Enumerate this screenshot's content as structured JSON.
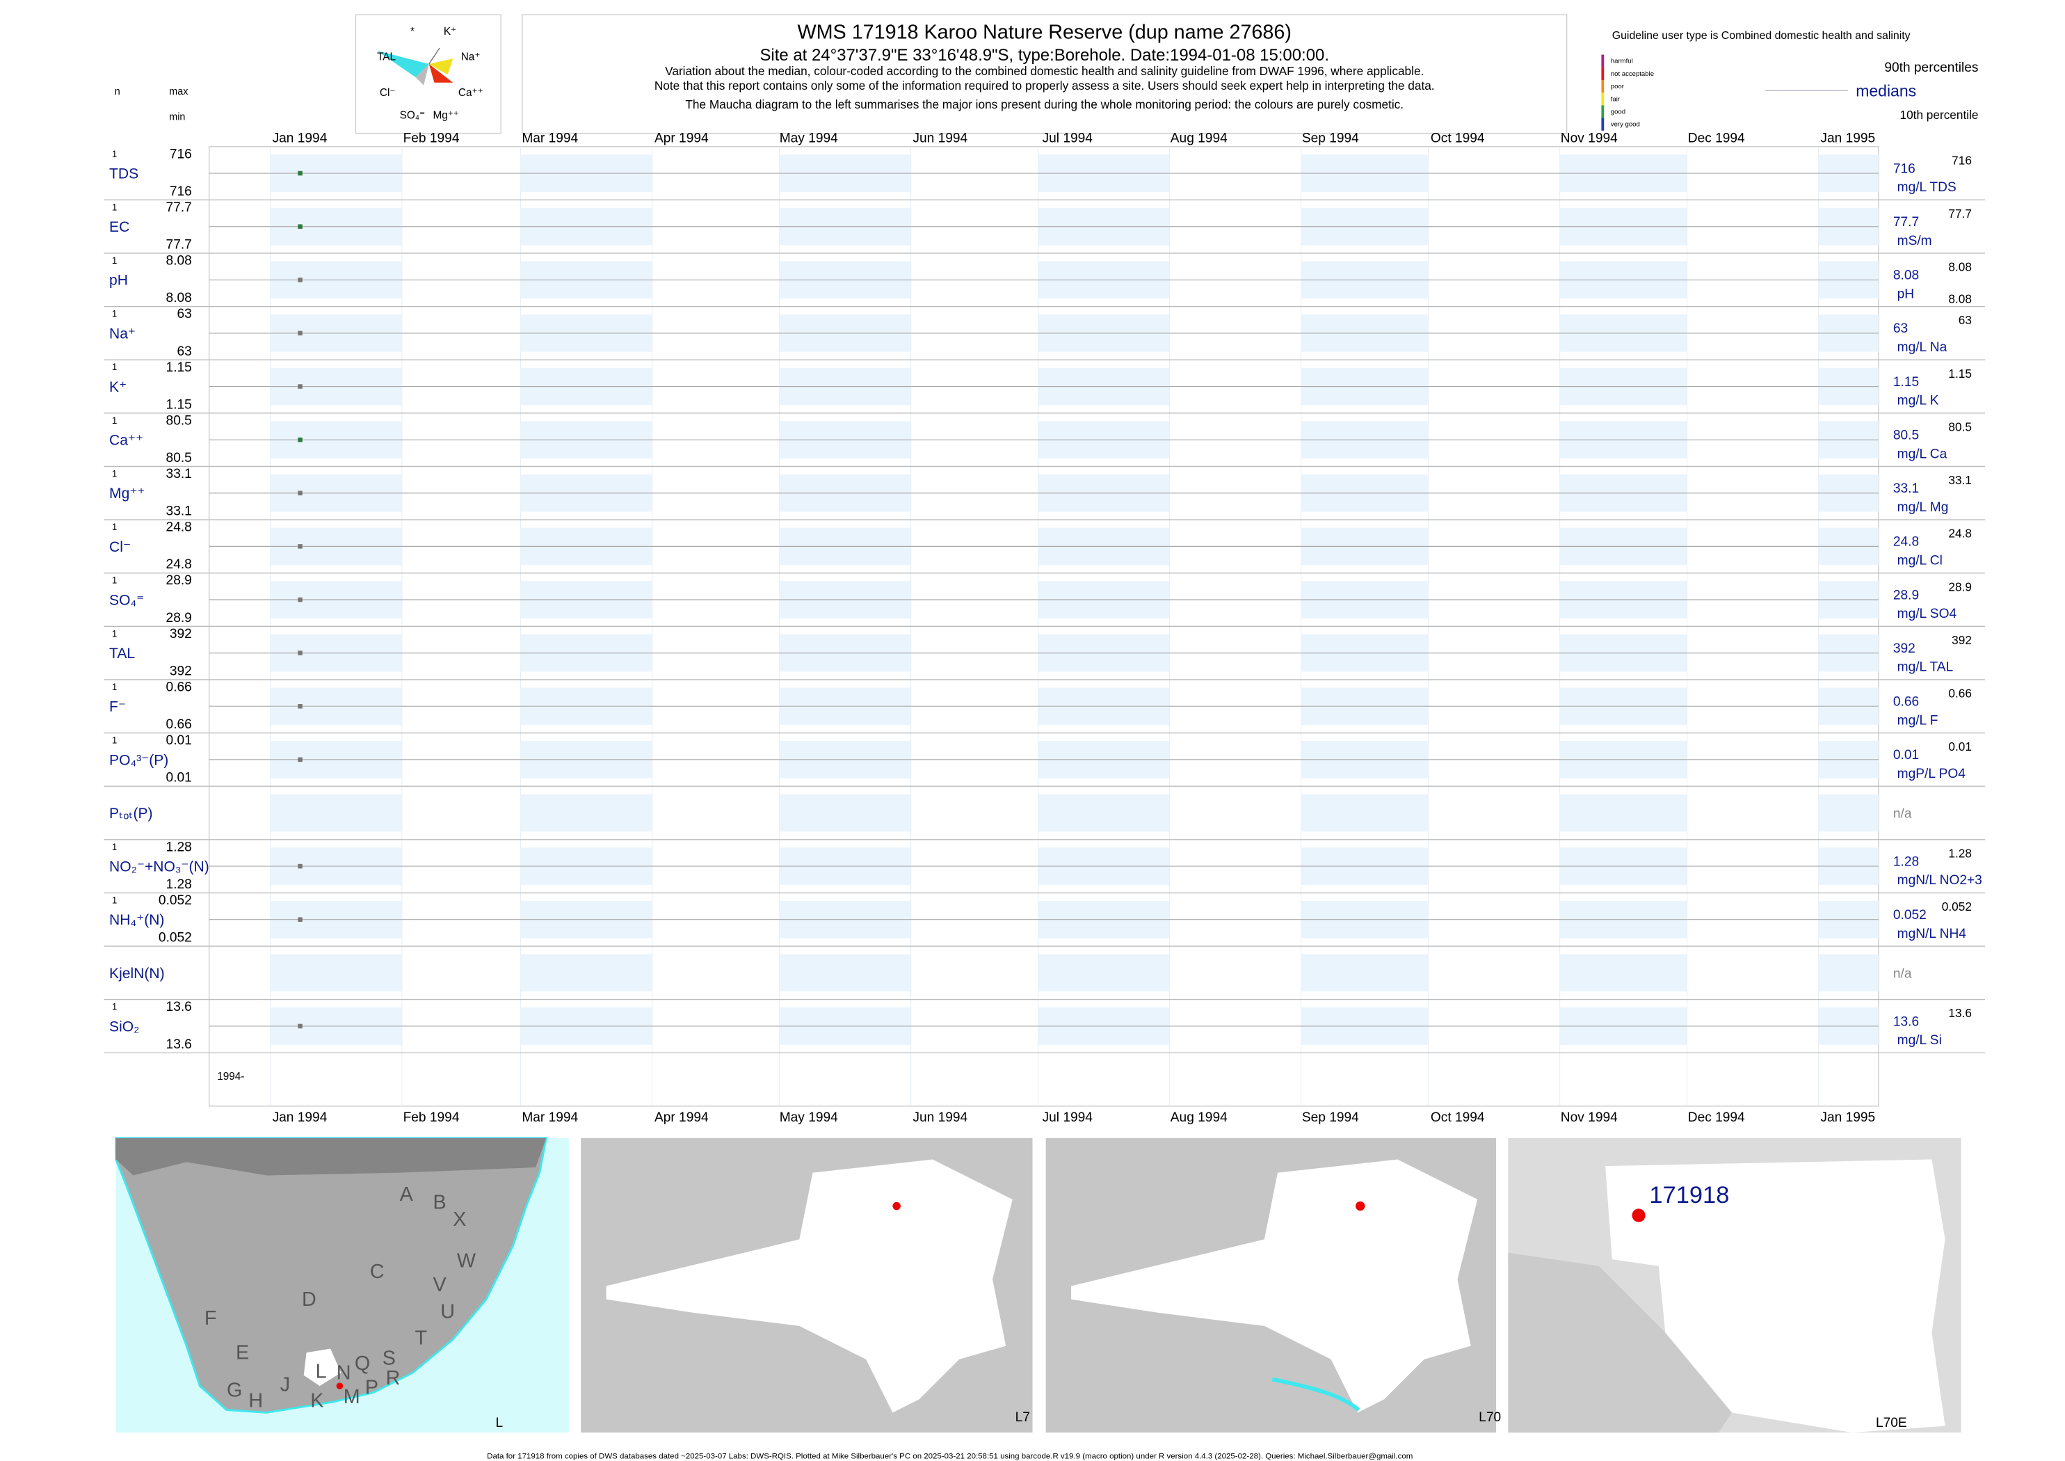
{
  "header": {
    "title": "WMS 171918  Karoo Nature Reserve (dup name 27686)",
    "subtitle": "Site at 24°37'37.9\"E 33°16'48.9\"S, type:Borehole. Date:1994-01-08 15:00:00.",
    "notes": [
      "Variation about the median,  colour-coded according to the combined domestic health and salinity guideline from DWAF 1996, where applicable.",
      "Note that this report contains only some of the information required to properly assess a site. Users should seek expert help in interpreting the data.",
      "The Maucha diagram to the left summarises the major ions present during the whole monitoring period: the colours are purely cosmetic."
    ],
    "guideline": "Guideline user type is Combined domestic health and salinity",
    "legend_levels": [
      {
        "label": "harmful",
        "color": "#b0207f"
      },
      {
        "label": "not acceptable",
        "color": "#e8141e"
      },
      {
        "label": "poor",
        "color": "#f58a1f"
      },
      {
        "label": "fair",
        "color": "#f5e61e"
      },
      {
        "label": "good",
        "color": "#2ea043"
      },
      {
        "label": "very good",
        "color": "#1f3fb4"
      }
    ],
    "p90": "90th percentiles",
    "medians": "medians",
    "p10": "10th percentile",
    "n_label": "n",
    "max_label": "max",
    "min_label": "min"
  },
  "maucha": {
    "labels": [
      "*",
      "K⁺",
      "TAL",
      "Na⁺",
      "Cl⁻",
      "Ca⁺⁺",
      "SO₄⁼",
      "Mg⁺⁺"
    ]
  },
  "chart_data": {
    "type": "strip",
    "x": [
      "Jan 1994",
      "Feb 1994",
      "Mar 1994",
      "Apr 1994",
      "May 1994",
      "Jun 1994",
      "Jul 1994",
      "Aug 1994",
      "Sep 1994",
      "Oct 1994",
      "Nov 1994",
      "Dec 1994",
      "Jan 1995"
    ],
    "sample_date": "1994-01-08",
    "start_label": "1994-",
    "rows": [
      {
        "label": "TDS",
        "n": 1,
        "max": 716,
        "min": 716,
        "median": 716,
        "unit": "mg/L TDS",
        "p90": 716,
        "color": "#2e7d3e"
      },
      {
        "label": "EC",
        "n": 1,
        "max": 77.7,
        "min": 77.7,
        "median": 77.7,
        "unit": "mS/m",
        "p90": 77.7,
        "color": "#2e7d3e"
      },
      {
        "label": "pH",
        "n": 1,
        "max": 8.08,
        "min": 8.08,
        "median": 8.08,
        "unit": "pH",
        "p90": 8.08,
        "p10": 8.08,
        "color": "#777777"
      },
      {
        "label": "Na⁺",
        "n": 1,
        "max": 63,
        "min": 63,
        "median": 63,
        "unit": "mg/L Na",
        "p90": 63,
        "color": "#777777"
      },
      {
        "label": "K⁺",
        "n": 1,
        "max": 1.15,
        "min": 1.15,
        "median": 1.15,
        "unit": "mg/L K",
        "p90": 1.15,
        "color": "#777777"
      },
      {
        "label": "Ca⁺⁺",
        "n": 1,
        "max": 80.5,
        "min": 80.5,
        "median": 80.5,
        "unit": "mg/L Ca",
        "p90": 80.5,
        "color": "#2e7d3e"
      },
      {
        "label": "Mg⁺⁺",
        "n": 1,
        "max": 33.1,
        "min": 33.1,
        "median": 33.1,
        "unit": "mg/L Mg",
        "p90": 33.1,
        "color": "#777777"
      },
      {
        "label": "Cl⁻",
        "n": 1,
        "max": 24.8,
        "min": 24.8,
        "median": 24.8,
        "unit": "mg/L Cl",
        "p90": 24.8,
        "color": "#777777"
      },
      {
        "label": "SO₄⁼",
        "n": 1,
        "max": 28.9,
        "min": 28.9,
        "median": 28.9,
        "unit": "mg/L SO4",
        "p90": 28.9,
        "color": "#777777"
      },
      {
        "label": "TAL",
        "n": 1,
        "max": 392,
        "min": 392,
        "median": 392,
        "unit": "mg/L TAL",
        "p90": 392,
        "color": "#777777"
      },
      {
        "label": "F⁻",
        "n": 1,
        "max": 0.66,
        "min": 0.66,
        "median": 0.66,
        "unit": "mg/L F",
        "p90": 0.66,
        "color": "#777777"
      },
      {
        "label": "PO₄³⁻(P)",
        "n": 1,
        "max": 0.01,
        "min": 0.01,
        "median": 0.01,
        "unit": "mgP/L PO4",
        "p90": 0.01,
        "color": "#777777"
      },
      {
        "label": "Pₜₒₜ(P)",
        "median": "n/a"
      },
      {
        "label": "NO₂⁻+NO₃⁻(N)",
        "n": 1,
        "max": 1.28,
        "min": 1.28,
        "median": 1.28,
        "unit": "mgN/L NO2+3",
        "p90": 1.28,
        "color": "#777777"
      },
      {
        "label": "NH₄⁺(N)",
        "n": 1,
        "max": 0.052,
        "min": 0.052,
        "median": 0.052,
        "unit": "mgN/L NH4",
        "p90": 0.052,
        "color": "#777777"
      },
      {
        "label": "KjelN(N)",
        "median": "n/a"
      },
      {
        "label": "SiO₂",
        "n": 1,
        "max": 13.6,
        "min": 13.6,
        "median": 13.6,
        "unit": "mg/L Si",
        "p90": 13.6,
        "color": "#777777"
      }
    ]
  },
  "maps": [
    {
      "label": "L",
      "regions": [
        "A",
        "B",
        "X",
        "C",
        "W",
        "V",
        "U",
        "D",
        "T",
        "F",
        "E",
        "S",
        "R",
        "Q",
        "N",
        "L",
        "P",
        "M",
        "K",
        "J",
        "H",
        "G"
      ]
    },
    {
      "label": "L7"
    },
    {
      "label": "L70"
    },
    {
      "label": "L70E",
      "site": "171918"
    }
  ],
  "footer": "Data for 171918 from copies of DWS databases dated ~2025-03-07 Labs: DWS-RQIS. Plotted at Mike Silberbauer's PC on 2025-03-21 20:58:51 using barcode.R v19.9 (macro option) under R version 4.4.3 (2025-02-28). Queries: Michael.Silberbauer@gmail.com"
}
